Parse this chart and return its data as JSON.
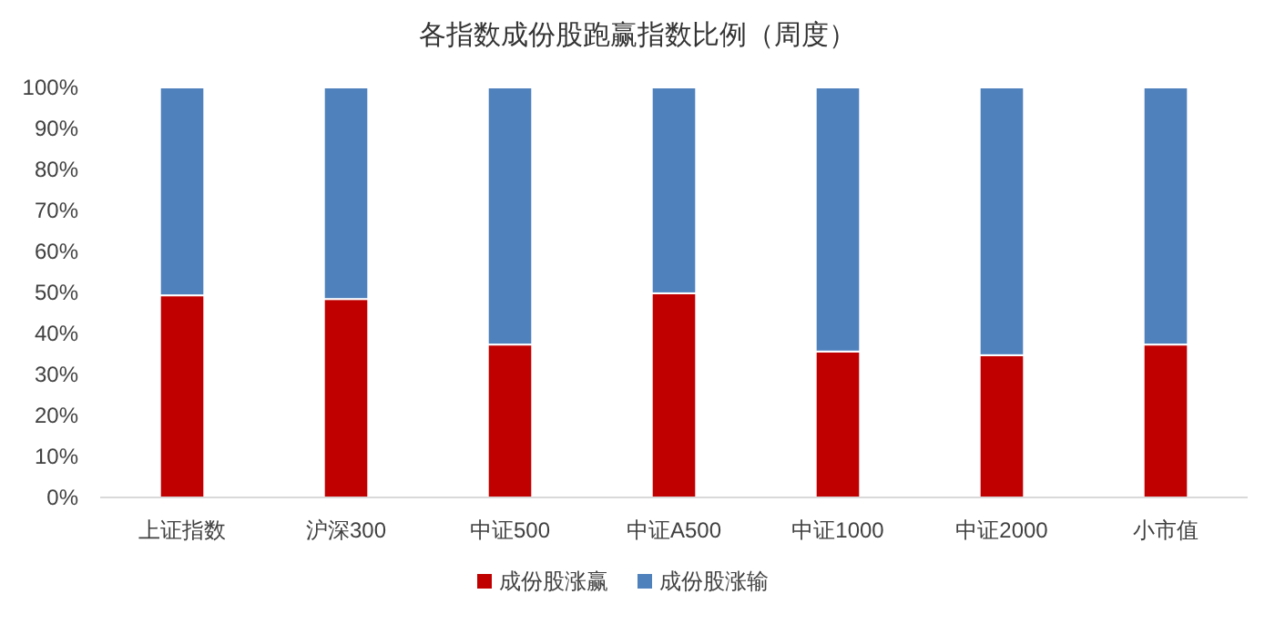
{
  "chart_data": {
    "type": "bar",
    "title": "各指数成份股跑赢指数比例（周度）",
    "stacked": true,
    "categories": [
      "上证指数",
      "沪深300",
      "中证500",
      "中证A500",
      "中证1000",
      "中证2000",
      "小市值"
    ],
    "series": [
      {
        "name": "成份股涨赢",
        "color": "#c00000",
        "values": [
          49.3,
          48.4,
          37.3,
          49.8,
          35.6,
          34.7,
          37.3
        ]
      },
      {
        "name": "成份股涨输",
        "color": "#4f81bd",
        "values": [
          50.7,
          51.6,
          62.7,
          50.2,
          64.4,
          65.3,
          62.7
        ]
      }
    ],
    "ylim": [
      0,
      100
    ],
    "yticks": [
      {
        "value": 0,
        "label": "0%"
      },
      {
        "value": 10,
        "label": "10%"
      },
      {
        "value": 20,
        "label": "20%"
      },
      {
        "value": 30,
        "label": "30%"
      },
      {
        "value": 40,
        "label": "40%"
      },
      {
        "value": 50,
        "label": "50%"
      },
      {
        "value": 60,
        "label": "60%"
      },
      {
        "value": 70,
        "label": "70%"
      },
      {
        "value": 80,
        "label": "80%"
      },
      {
        "value": 90,
        "label": "90%"
      },
      {
        "value": 100,
        "label": "100%"
      }
    ],
    "grid": false,
    "legend": "bottom"
  }
}
